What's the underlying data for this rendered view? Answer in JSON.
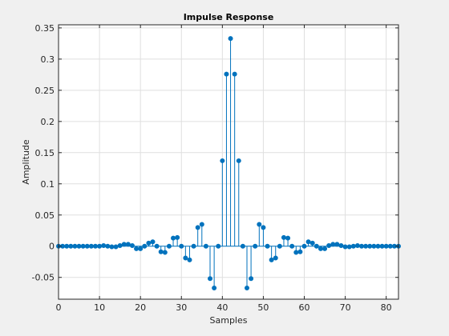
{
  "chart_data": {
    "type": "stem",
    "title": "Impulse Response",
    "xlabel": "Samples",
    "ylabel": "Amplitude",
    "xlim": [
      0,
      83
    ],
    "ylim": [
      -0.085,
      0.355
    ],
    "x_ticks": [
      0,
      10,
      20,
      30,
      40,
      50,
      60,
      70,
      80
    ],
    "y_ticks": [
      -0.05,
      0,
      0.05,
      0.1,
      0.15,
      0.2,
      0.25,
      0.3,
      0.35
    ],
    "x_tick_labels": [
      "0",
      "10",
      "20",
      "30",
      "40",
      "50",
      "60",
      "70",
      "80"
    ],
    "y_tick_labels": [
      "-0.05",
      "0",
      "0.05",
      "0.1",
      "0.15",
      "0.2",
      "0.25",
      "0.3",
      "0.35"
    ],
    "grid": true,
    "x": [
      0,
      1,
      2,
      3,
      4,
      5,
      6,
      7,
      8,
      9,
      10,
      11,
      12,
      13,
      14,
      15,
      16,
      17,
      18,
      19,
      20,
      21,
      22,
      23,
      24,
      25,
      26,
      27,
      28,
      29,
      30,
      31,
      32,
      33,
      34,
      35,
      36,
      37,
      38,
      39,
      40,
      41,
      42,
      43,
      44,
      45,
      46,
      47,
      48,
      49,
      50,
      51,
      52,
      53,
      54,
      55,
      56,
      57,
      58,
      59,
      60,
      61,
      62,
      63,
      64,
      65,
      66,
      67,
      68,
      69,
      70,
      71,
      72,
      73,
      74,
      75,
      76,
      77,
      78,
      79,
      80,
      81,
      82,
      83
    ],
    "values": [
      0,
      0,
      0,
      0,
      0,
      0,
      0,
      0,
      0,
      0,
      0,
      0.001,
      0,
      -0.001,
      -0.001,
      0.001,
      0.003,
      0.003,
      0.001,
      -0.004,
      -0.004,
      0,
      0.005,
      0.007,
      0,
      -0.009,
      -0.01,
      0,
      0.013,
      0.014,
      0,
      -0.019,
      -0.022,
      0,
      0.03,
      0.035,
      0,
      -0.052,
      -0.067,
      0,
      0.137,
      0.276,
      0.333,
      0.276,
      0.137,
      0,
      -0.067,
      -0.052,
      0,
      0.035,
      0.03,
      0,
      -0.022,
      -0.019,
      0,
      0.014,
      0.013,
      0,
      -0.01,
      -0.009,
      0,
      0.007,
      0.005,
      0,
      -0.004,
      -0.004,
      0.001,
      0.003,
      0.003,
      0.001,
      -0.001,
      -0.001,
      0,
      0.001,
      0,
      0,
      0,
      0,
      0,
      0,
      0,
      0,
      0,
      0
    ],
    "colors": {
      "series": "#0072bd",
      "axes_bg": "#ffffff",
      "figure_bg": "#f0f0f0",
      "grid": "#dfdfdf",
      "axis": "#262626"
    }
  }
}
